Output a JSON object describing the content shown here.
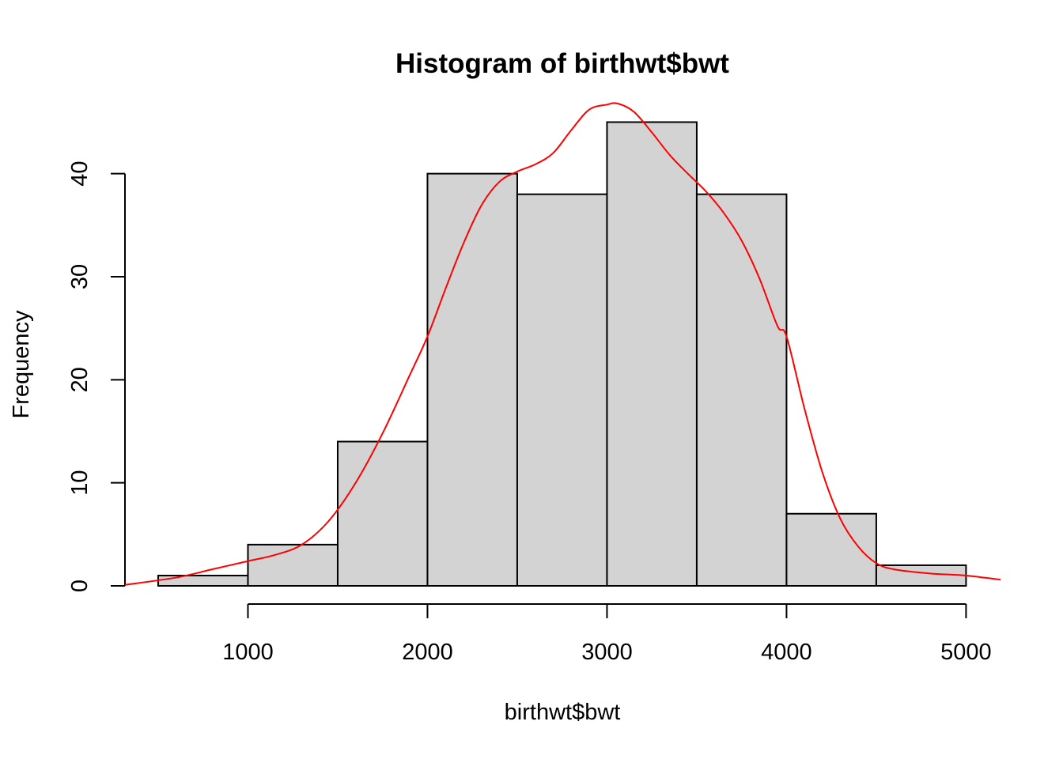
{
  "chart_data": {
    "type": "bar",
    "subtype": "histogram",
    "title": "Histogram of birthwt$bwt",
    "xlabel": "birthwt$bwt",
    "ylabel": "Frequency",
    "bins": [
      {
        "start": 500,
        "end": 1000,
        "count": 1
      },
      {
        "start": 1000,
        "end": 1500,
        "count": 4
      },
      {
        "start": 1500,
        "end": 2000,
        "count": 14
      },
      {
        "start": 2000,
        "end": 2500,
        "count": 40
      },
      {
        "start": 2500,
        "end": 3000,
        "count": 38
      },
      {
        "start": 3000,
        "end": 3500,
        "count": 45
      },
      {
        "start": 3500,
        "end": 4000,
        "count": 38
      },
      {
        "start": 4000,
        "end": 4500,
        "count": 7
      },
      {
        "start": 4500,
        "end": 5000,
        "count": 2
      }
    ],
    "x_ticks": [
      1000,
      2000,
      3000,
      4000,
      5000
    ],
    "x_tick_labels": [
      "1000",
      "2000",
      "3000",
      "4000",
      "5000"
    ],
    "y_ticks": [
      0,
      10,
      20,
      30,
      40
    ],
    "y_tick_labels": [
      "0",
      "10",
      "20",
      "30",
      "40"
    ],
    "xlim": [
      315,
      5192
    ],
    "ylim": [
      0,
      46.8
    ],
    "density_curve": {
      "name": "density",
      "color": "#ff0000",
      "x": [
        315,
        600,
        800,
        1000,
        1150,
        1300,
        1450,
        1600,
        1750,
        1900,
        2000,
        2100,
        2200,
        2300,
        2400,
        2500,
        2600,
        2700,
        2800,
        2900,
        3000,
        3060,
        3150,
        3250,
        3350,
        3450,
        3550,
        3650,
        3750,
        3850,
        3950,
        4000,
        4100,
        4200,
        4300,
        4400,
        4500,
        4600,
        4800,
        5000,
        5192
      ],
      "y": [
        0.1,
        0.8,
        1.6,
        2.4,
        3.0,
        4.0,
        6.3,
        10.0,
        14.8,
        20.4,
        24.2,
        28.8,
        33.2,
        36.9,
        39.2,
        40.2,
        40.9,
        42.0,
        44.2,
        46.2,
        46.7,
        46.8,
        46.0,
        44.0,
        41.8,
        40.0,
        38.3,
        36.2,
        33.5,
        29.8,
        25.2,
        24.2,
        17.2,
        11.0,
        6.5,
        3.8,
        2.2,
        1.6,
        1.2,
        1.0,
        0.6
      ]
    },
    "colors": {
      "bar_fill": "#d3d3d3",
      "bar_stroke": "#000000",
      "curve": "#ff0000",
      "axis": "#000000",
      "background": "#ffffff"
    },
    "grid": false,
    "legend": "none"
  }
}
